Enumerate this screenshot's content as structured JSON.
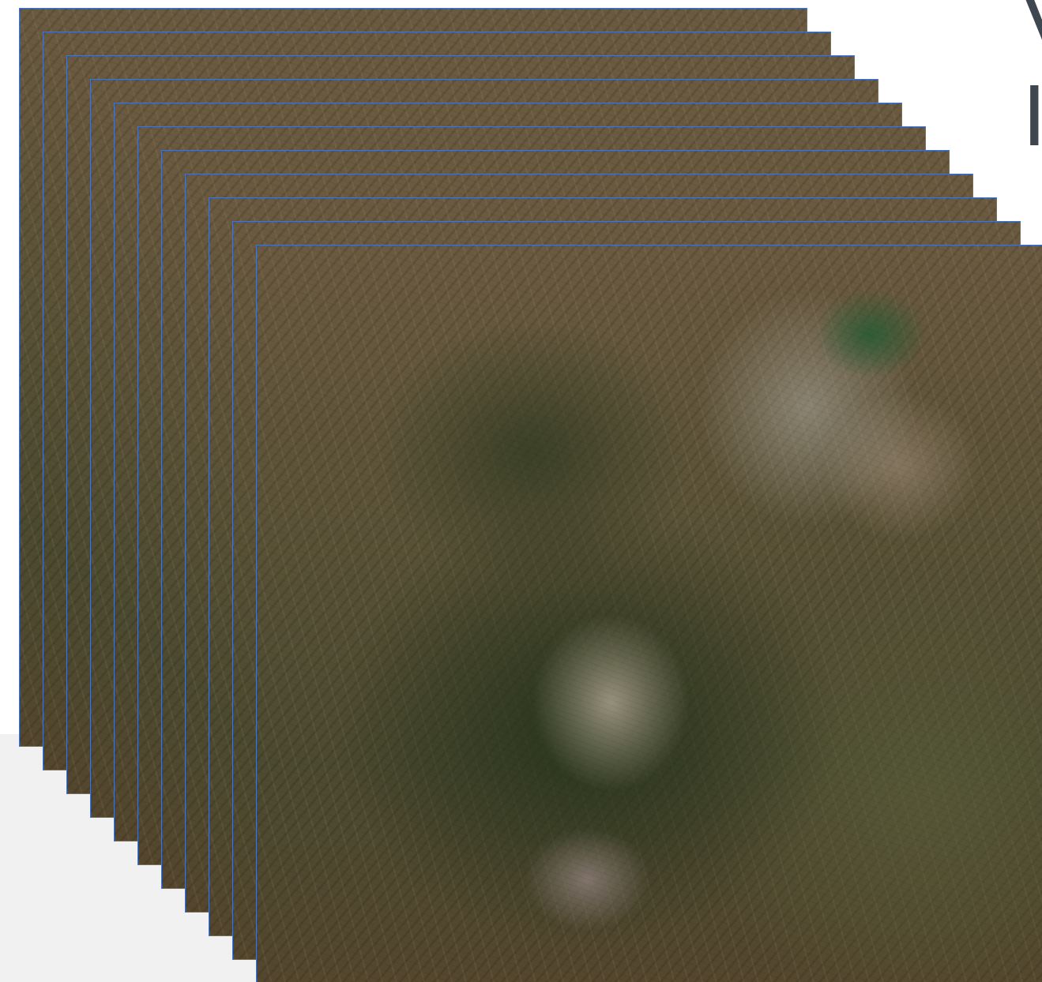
{
  "header": {
    "corner_text": "V\nI"
  },
  "image_stack": {
    "tile_count": 11,
    "border_color": "#4a74c0",
    "background_panel_color": "#f1f1f2"
  }
}
